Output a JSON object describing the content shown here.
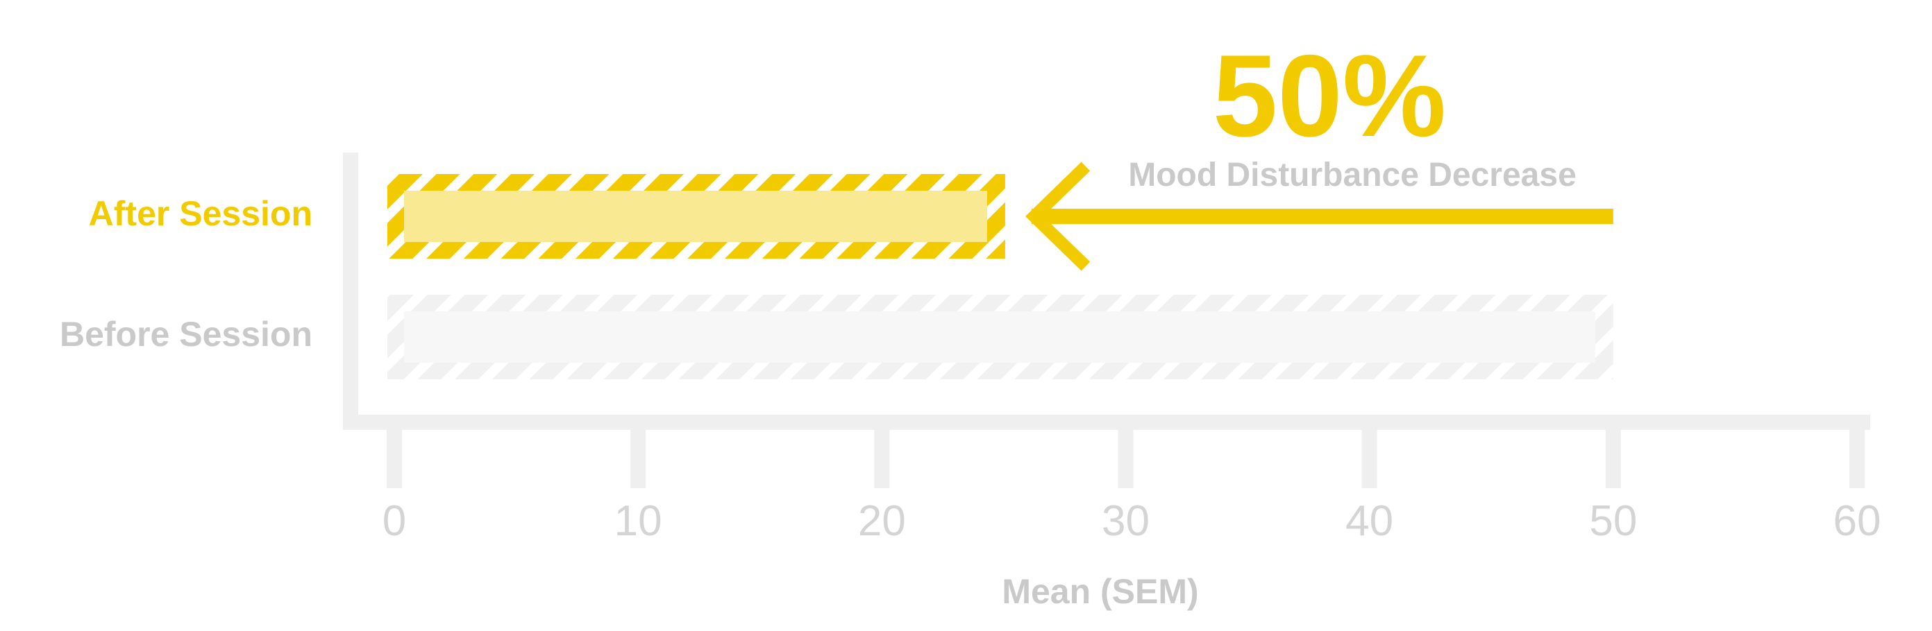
{
  "colors": {
    "accent": "#F2CA00",
    "accent_light": "#F8E992",
    "gray_text": "#C9C9C9",
    "gray_tick": "#D4D4D4",
    "gray_axis": "#EFEFEF",
    "gray_bar": "#F4F4F4",
    "gray_bar_fill": "#F7F7F7"
  },
  "chart_data": {
    "type": "bar",
    "orientation": "horizontal",
    "categories": [
      "After Session",
      "Before Session"
    ],
    "values": [
      25,
      50
    ],
    "xlabel": "Mean (SEM)",
    "ylabel": "",
    "xlim": [
      0,
      60
    ],
    "xticks": [
      "0",
      "10",
      "20",
      "30",
      "40",
      "50",
      "60"
    ],
    "grid": false,
    "annotation": {
      "value": "50%",
      "text": "Mood Disturbance Decrease",
      "arrow_from": 50,
      "arrow_to": 25
    }
  }
}
